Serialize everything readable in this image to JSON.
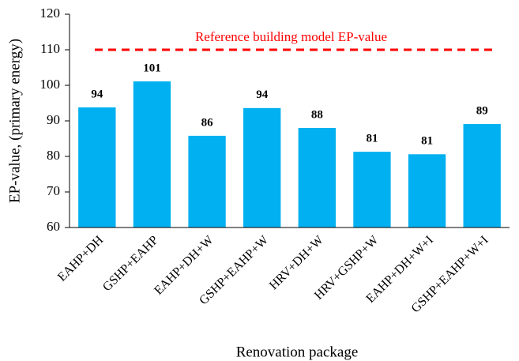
{
  "chart_data": {
    "type": "bar",
    "x_label": "Renovation package",
    "y_label": "EP-value, (primary energy)",
    "categories": [
      "EAHP+DH",
      "GSHP+EAHP",
      "EAHP+DH+W",
      "GSHP+EAHP+W",
      "HRV+DH+W",
      "HRV+GSHP+W",
      "EAHP+DH+W+I",
      "GSHP+EAHP+W+I"
    ],
    "values": [
      93.8,
      101.1,
      85.8,
      93.6,
      88.0,
      81.3,
      80.6,
      89.1
    ],
    "value_labels": [
      "94",
      "101",
      "86",
      "94",
      "88",
      "81",
      "81",
      "89"
    ],
    "color": "#00b0f0",
    "ylim": [
      60,
      120
    ],
    "yticks": [
      60,
      70,
      80,
      90,
      100,
      110,
      120
    ],
    "grid": false,
    "reference_line": {
      "value": 110,
      "label": "Reference building model EP-value",
      "color": "#ff0000"
    }
  }
}
